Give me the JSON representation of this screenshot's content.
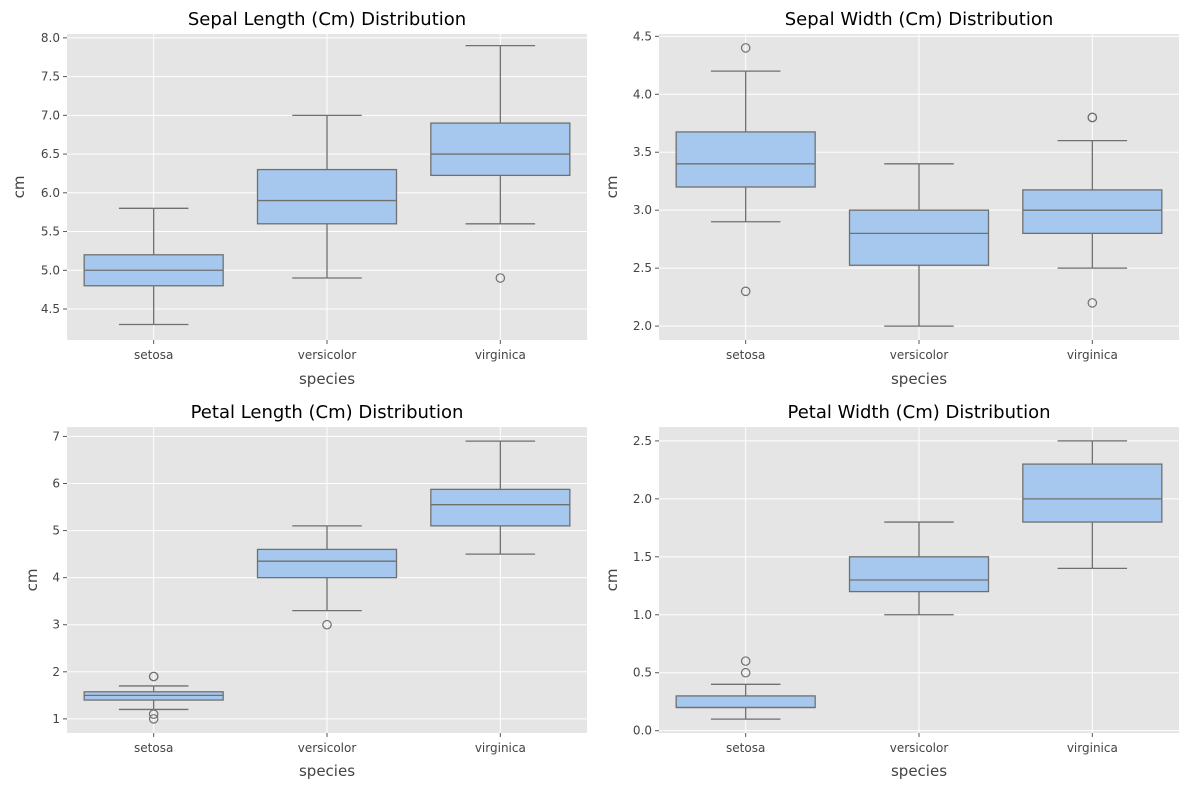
{
  "chart_data": [
    {
      "type": "box",
      "title": "Sepal Length (Cm) Distribution",
      "xlabel": "species",
      "ylabel": "cm",
      "categories": [
        "setosa",
        "versicolor",
        "virginica"
      ],
      "ylim": [
        4.1,
        8.05
      ],
      "yticks": [
        4.5,
        5.0,
        5.5,
        6.0,
        6.5,
        7.0,
        7.5,
        8.0
      ],
      "ytick_labels": [
        "4.5",
        "5.0",
        "5.5",
        "6.0",
        "6.5",
        "7.0",
        "7.5",
        "8.0"
      ],
      "grid": true,
      "boxes": [
        {
          "whisker_low": 4.3,
          "q1": 4.8,
          "median": 5.0,
          "q3": 5.2,
          "whisker_high": 5.8,
          "outliers": []
        },
        {
          "whisker_low": 4.9,
          "q1": 5.6,
          "median": 5.9,
          "q3": 6.3,
          "whisker_high": 7.0,
          "outliers": []
        },
        {
          "whisker_low": 5.6,
          "q1": 6.225,
          "median": 6.5,
          "q3": 6.9,
          "whisker_high": 7.9,
          "outliers": [
            4.9
          ]
        }
      ]
    },
    {
      "type": "box",
      "title": "Sepal Width (Cm) Distribution",
      "xlabel": "species",
      "ylabel": "cm",
      "categories": [
        "setosa",
        "versicolor",
        "virginica"
      ],
      "ylim": [
        1.88,
        4.52
      ],
      "yticks": [
        2.0,
        2.5,
        3.0,
        3.5,
        4.0,
        4.5
      ],
      "ytick_labels": [
        "2.0",
        "2.5",
        "3.0",
        "3.5",
        "4.0",
        "4.5"
      ],
      "grid": true,
      "boxes": [
        {
          "whisker_low": 2.9,
          "q1": 3.2,
          "median": 3.4,
          "q3": 3.675,
          "whisker_high": 4.2,
          "outliers": [
            2.3,
            4.4
          ]
        },
        {
          "whisker_low": 2.0,
          "q1": 2.525,
          "median": 2.8,
          "q3": 3.0,
          "whisker_high": 3.4,
          "outliers": []
        },
        {
          "whisker_low": 2.5,
          "q1": 2.8,
          "median": 3.0,
          "q3": 3.175,
          "whisker_high": 3.6,
          "outliers": [
            2.2,
            3.8,
            3.8
          ]
        }
      ]
    },
    {
      "type": "box",
      "title": "Petal Length (Cm) Distribution",
      "xlabel": "species",
      "ylabel": "cm",
      "categories": [
        "setosa",
        "versicolor",
        "virginica"
      ],
      "ylim": [
        0.7,
        7.2
      ],
      "yticks": [
        1,
        2,
        3,
        4,
        5,
        6,
        7
      ],
      "ytick_labels": [
        "1",
        "2",
        "3",
        "4",
        "5",
        "6",
        "7"
      ],
      "grid": true,
      "boxes": [
        {
          "whisker_low": 1.2,
          "q1": 1.4,
          "median": 1.5,
          "q3": 1.575,
          "whisker_high": 1.7,
          "outliers": [
            1.0,
            1.1,
            1.9,
            1.9
          ]
        },
        {
          "whisker_low": 3.3,
          "q1": 4.0,
          "median": 4.35,
          "q3": 4.6,
          "whisker_high": 5.1,
          "outliers": [
            3.0
          ]
        },
        {
          "whisker_low": 4.5,
          "q1": 5.1,
          "median": 5.55,
          "q3": 5.875,
          "whisker_high": 6.9,
          "outliers": []
        }
      ]
    },
    {
      "type": "box",
      "title": "Petal Width (Cm) Distribution",
      "xlabel": "species",
      "ylabel": "cm",
      "categories": [
        "setosa",
        "versicolor",
        "virginica"
      ],
      "ylim": [
        -0.02,
        2.62
      ],
      "yticks": [
        0.0,
        0.5,
        1.0,
        1.5,
        2.0,
        2.5
      ],
      "ytick_labels": [
        "0.0",
        "0.5",
        "1.0",
        "1.5",
        "2.0",
        "2.5"
      ],
      "grid": true,
      "boxes": [
        {
          "whisker_low": 0.1,
          "q1": 0.2,
          "median": 0.2,
          "q3": 0.3,
          "whisker_high": 0.4,
          "outliers": [
            0.5,
            0.6
          ]
        },
        {
          "whisker_low": 1.0,
          "q1": 1.2,
          "median": 1.3,
          "q3": 1.5,
          "whisker_high": 1.8,
          "outliers": []
        },
        {
          "whisker_low": 1.4,
          "q1": 1.8,
          "median": 2.0,
          "q3": 2.3,
          "whisker_high": 2.5,
          "outliers": []
        }
      ]
    }
  ],
  "colors": {
    "box_fill": "#a7c8ee",
    "box_edge": "#707070",
    "axes_background": "#e5e5e5",
    "grid": "#ffffff"
  }
}
